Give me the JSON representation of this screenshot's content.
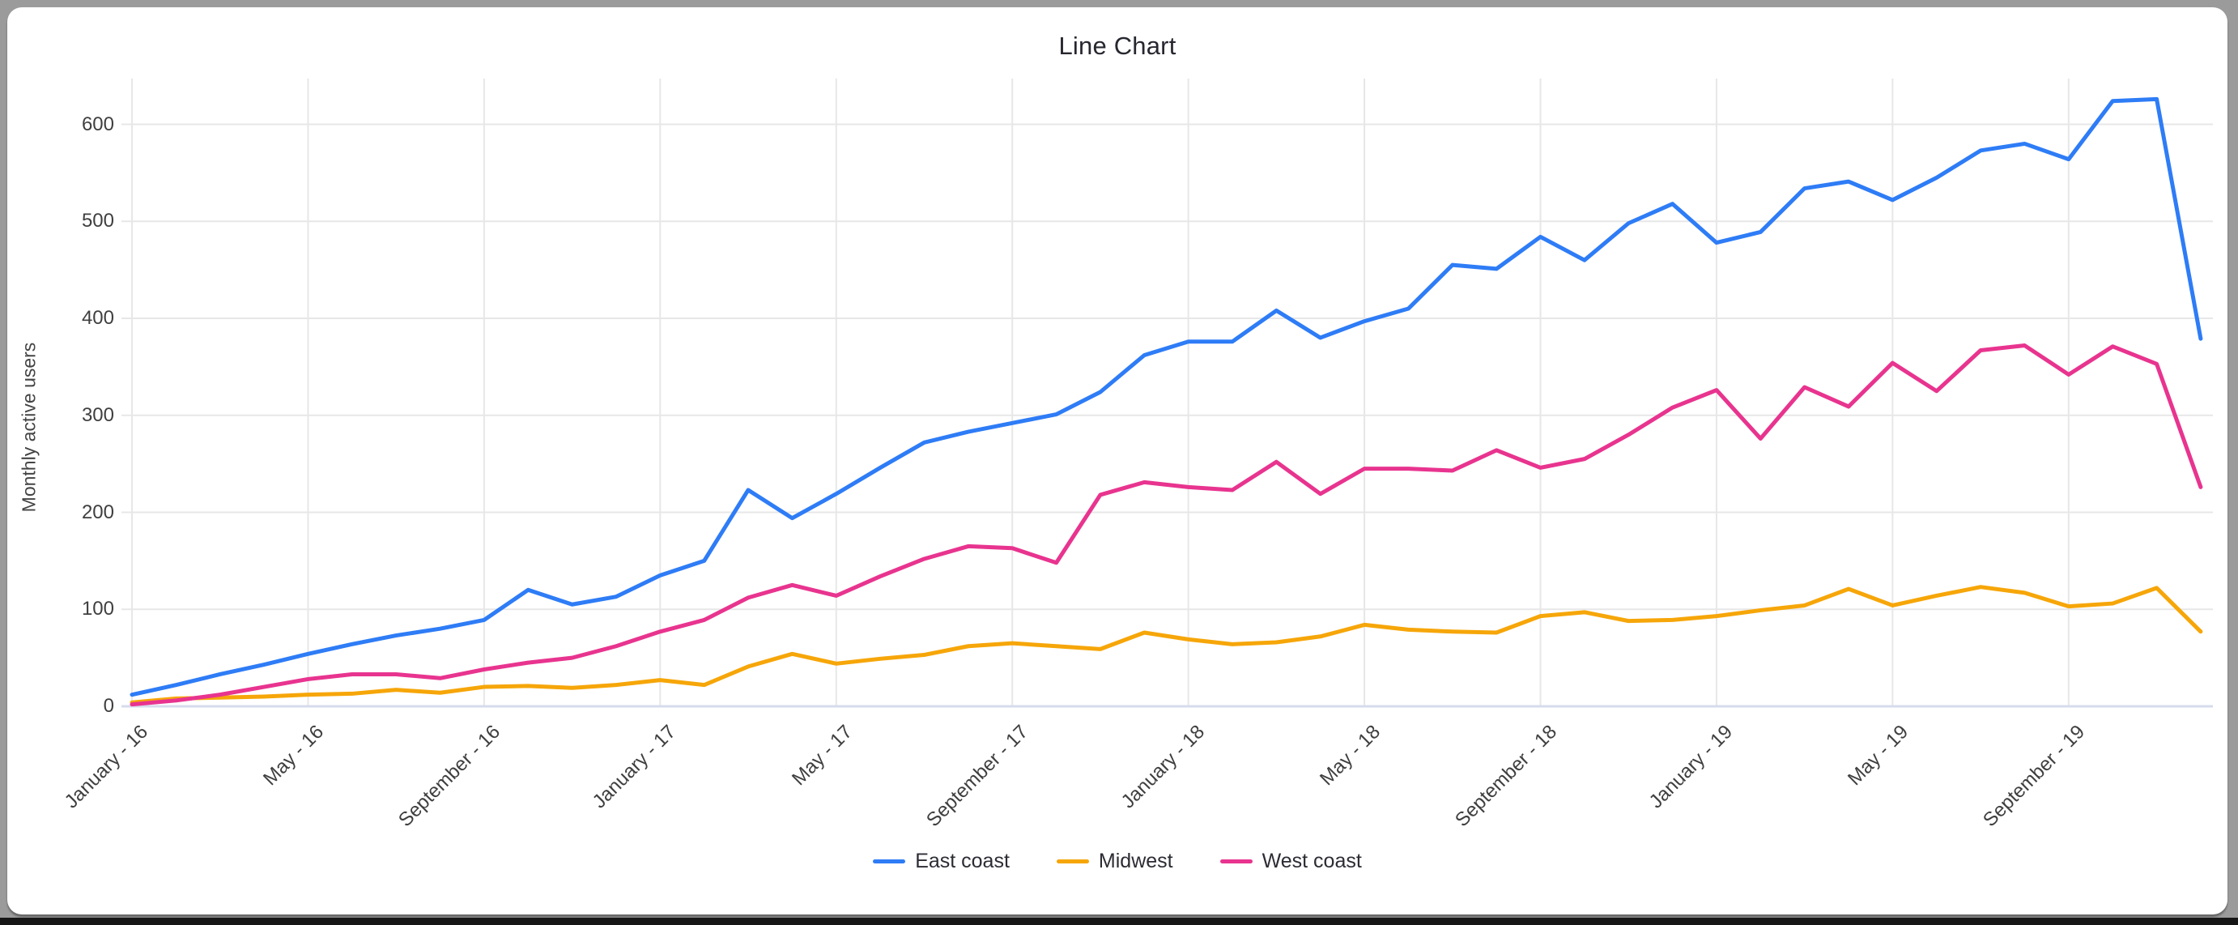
{
  "chart_data": {
    "type": "line",
    "title": "Line Chart",
    "xlabel": "",
    "ylabel": "Monthly active users",
    "ylim": [
      0,
      650
    ],
    "y_ticks": [
      "0",
      "100",
      "200",
      "300",
      "400",
      "500",
      "600"
    ],
    "grid": true,
    "legend_position": "bottom",
    "x_tick_labels": [
      "January - 16",
      "May - 16",
      "September - 16",
      "January - 17",
      "May - 17",
      "September - 17",
      "January - 18",
      "May - 18",
      "September - 18",
      "January - 19",
      "May - 19",
      "September - 19"
    ],
    "x_tick_every": 4,
    "categories": [
      "January - 16",
      "February - 16",
      "March - 16",
      "April - 16",
      "May - 16",
      "June - 16",
      "July - 16",
      "August - 16",
      "September - 16",
      "October - 16",
      "November - 16",
      "December - 16",
      "January - 17",
      "February - 17",
      "March - 17",
      "April - 17",
      "May - 17",
      "June - 17",
      "July - 17",
      "August - 17",
      "September - 17",
      "October - 17",
      "November - 17",
      "December - 17",
      "January - 18",
      "February - 18",
      "March - 18",
      "April - 18",
      "May - 18",
      "June - 18",
      "July - 18",
      "August - 18",
      "September - 18",
      "October - 18",
      "November - 18",
      "December - 18",
      "January - 19",
      "February - 19",
      "March - 19",
      "April - 19",
      "May - 19",
      "June - 19",
      "July - 19",
      "August - 19",
      "September - 19",
      "October - 19",
      "November - 19",
      "December - 19"
    ],
    "series": [
      {
        "name": "East coast",
        "color": "#2E7CF6",
        "values": [
          12,
          22,
          33,
          43,
          54,
          64,
          73,
          80,
          89,
          120,
          105,
          113,
          135,
          150,
          223,
          194,
          219,
          246,
          272,
          283,
          292,
          301,
          324,
          362,
          376,
          376,
          408,
          380,
          397,
          410,
          455,
          451,
          484,
          460,
          498,
          518,
          478,
          489,
          534,
          541,
          522,
          545,
          573,
          580,
          564,
          624,
          626,
          379
        ]
      },
      {
        "name": "Midwest",
        "color": "#F6A609",
        "values": [
          4,
          8,
          9,
          10,
          12,
          13,
          17,
          14,
          20,
          21,
          19,
          22,
          27,
          22,
          41,
          54,
          44,
          49,
          53,
          62,
          65,
          62,
          59,
          76,
          69,
          64,
          66,
          72,
          84,
          79,
          77,
          76,
          93,
          97,
          88,
          89,
          93,
          99,
          104,
          121,
          104,
          114,
          123,
          117,
          103,
          106,
          122,
          77
        ]
      },
      {
        "name": "West coast",
        "color": "#E8348F",
        "values": [
          2,
          6,
          12,
          20,
          28,
          33,
          33,
          29,
          38,
          45,
          50,
          62,
          77,
          89,
          112,
          125,
          114,
          134,
          152,
          165,
          163,
          148,
          218,
          231,
          226,
          223,
          252,
          219,
          245,
          245,
          243,
          264,
          246,
          255,
          280,
          308,
          326,
          276,
          329,
          309,
          354,
          325,
          367,
          372,
          342,
          371,
          353,
          226
        ]
      }
    ],
    "colors": {
      "grid": "#e7e7e7",
      "zero_line": "#d6dcec",
      "tick_text": "#3f3f3f",
      "title_text": "#27272f"
    }
  }
}
